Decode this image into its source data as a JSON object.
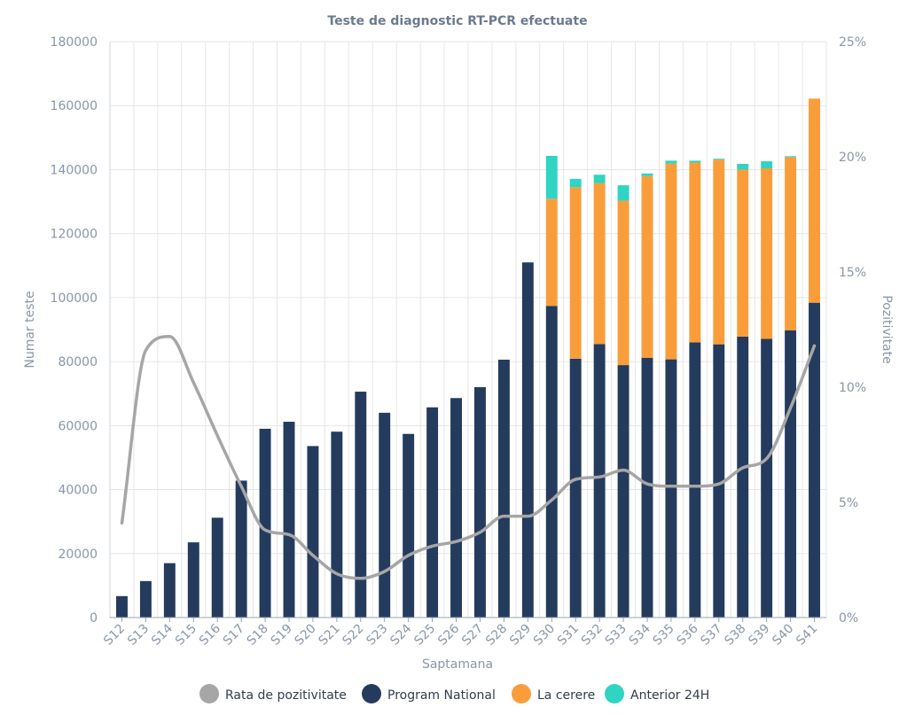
{
  "chart_data": {
    "type": "bar",
    "stacked": true,
    "title": "Teste de diagnostic RT-PCR efectuate",
    "xlabel": "Saptamana",
    "ylabel": "Numar teste",
    "y2label": "Pozitivitate",
    "ylim": [
      0,
      180000
    ],
    "y2lim": [
      0,
      25
    ],
    "yticks": [
      "0",
      "20000",
      "40000",
      "60000",
      "80000",
      "100000",
      "120000",
      "140000",
      "160000",
      "180000"
    ],
    "y2ticks": [
      "0%",
      "5%",
      "10%",
      "15%",
      "20%",
      "25%"
    ],
    "categories": [
      "S12",
      "S13",
      "S14",
      "S15",
      "S16",
      "S17",
      "S18",
      "S19",
      "S20",
      "S21",
      "S22",
      "S23",
      "S24",
      "S25",
      "S26",
      "S27",
      "S28",
      "S29",
      "S30",
      "S31",
      "S32",
      "S33",
      "S34",
      "S35",
      "S36",
      "S37",
      "S38",
      "S39",
      "S40",
      "S41"
    ],
    "series": [
      {
        "name": "Program National",
        "color": "#243b5e",
        "kind": "bar",
        "values": [
          6700,
          11400,
          17000,
          23500,
          31200,
          42800,
          59000,
          61200,
          53600,
          58100,
          70600,
          64000,
          57400,
          65700,
          68600,
          72000,
          80600,
          111000,
          97400,
          80900,
          85500,
          78900,
          81200,
          80700,
          86000,
          85400,
          87800,
          87100,
          89800,
          98400
        ]
      },
      {
        "name": "La cerere",
        "color": "#f99d3b",
        "kind": "bar",
        "values": [
          0,
          0,
          0,
          0,
          0,
          0,
          0,
          0,
          0,
          0,
          0,
          0,
          0,
          0,
          0,
          0,
          0,
          0,
          33500,
          53600,
          50300,
          51400,
          56800,
          61200,
          56200,
          57700,
          52200,
          53300,
          54100,
          63800
        ]
      },
      {
        "name": "Anterior 24H",
        "color": "#2fd4c2",
        "kind": "bar",
        "values": [
          0,
          0,
          0,
          0,
          0,
          0,
          0,
          0,
          0,
          0,
          0,
          0,
          0,
          0,
          0,
          0,
          0,
          0,
          13400,
          2600,
          2600,
          4800,
          800,
          900,
          600,
          300,
          1800,
          2200,
          300,
          0
        ]
      },
      {
        "name": "Rata de pozitivitate",
        "color": "#a6a6a6",
        "kind": "line",
        "axis": "y2",
        "values": [
          4.1,
          11.6,
          12.2,
          10.2,
          7.9,
          5.7,
          3.8,
          3.6,
          2.7,
          1.9,
          1.7,
          2.0,
          2.7,
          3.1,
          3.3,
          3.7,
          4.4,
          4.4,
          5.1,
          6.0,
          6.1,
          6.4,
          5.8,
          5.7,
          5.7,
          5.8,
          6.5,
          6.9,
          9.1,
          11.8
        ]
      }
    ],
    "legend": [
      "Rata de pozitivitate",
      "Program National",
      "La cerere",
      "Anterior 24H"
    ],
    "legend_position": "bottom",
    "grid": true
  }
}
